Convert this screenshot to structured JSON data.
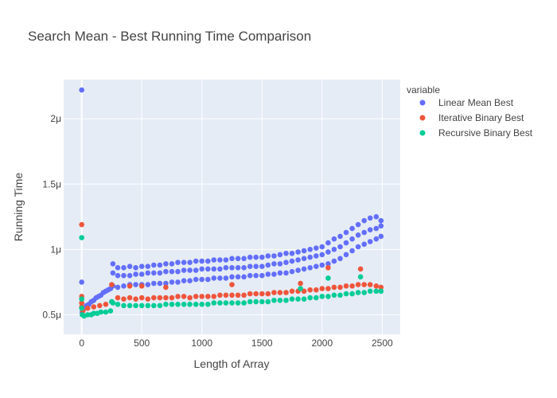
{
  "chart_data": {
    "type": "scatter",
    "title": "Search Mean - Best Running Time Comparison",
    "xlabel": "Length of Array",
    "ylabel": "Running Time",
    "xlim": [
      -150,
      2650
    ],
    "ylim": [
      0.35,
      2.3
    ],
    "x_ticks": [
      0,
      500,
      1000,
      1500,
      2000,
      2500
    ],
    "x_tick_labels": [
      "0",
      "500",
      "1000",
      "1500",
      "2000",
      "2500"
    ],
    "y_ticks": [
      0.5,
      1.0,
      1.5,
      2.0
    ],
    "y_tick_labels": [
      "0.5μ",
      "1μ",
      "1.5μ",
      "2μ"
    ],
    "grid": true,
    "legend_title": "variable",
    "legend_position": "top-right",
    "series": [
      {
        "name": "Linear Mean Best",
        "color": "#636efa",
        "points": [
          [
            0,
            2.22
          ],
          [
            0,
            0.75
          ],
          [
            5,
            0.52
          ],
          [
            20,
            0.55
          ],
          [
            40,
            0.57
          ],
          [
            60,
            0.58
          ],
          [
            80,
            0.6
          ],
          [
            100,
            0.61
          ],
          [
            120,
            0.63
          ],
          [
            140,
            0.64
          ],
          [
            160,
            0.65
          ],
          [
            180,
            0.67
          ],
          [
            200,
            0.68
          ],
          [
            220,
            0.69
          ],
          [
            240,
            0.7
          ],
          [
            260,
            0.89
          ],
          [
            260,
            0.82
          ],
          [
            260,
            0.72
          ],
          [
            300,
            0.86
          ],
          [
            300,
            0.8
          ],
          [
            300,
            0.71
          ],
          [
            350,
            0.86
          ],
          [
            350,
            0.8
          ],
          [
            350,
            0.72
          ],
          [
            400,
            0.87
          ],
          [
            400,
            0.8
          ],
          [
            400,
            0.73
          ],
          [
            450,
            0.86
          ],
          [
            450,
            0.81
          ],
          [
            450,
            0.73
          ],
          [
            500,
            0.87
          ],
          [
            500,
            0.81
          ],
          [
            500,
            0.73
          ],
          [
            550,
            0.87
          ],
          [
            550,
            0.82
          ],
          [
            550,
            0.73
          ],
          [
            600,
            0.88
          ],
          [
            600,
            0.82
          ],
          [
            600,
            0.74
          ],
          [
            650,
            0.88
          ],
          [
            650,
            0.82
          ],
          [
            650,
            0.74
          ],
          [
            700,
            0.89
          ],
          [
            700,
            0.83
          ],
          [
            700,
            0.74
          ],
          [
            750,
            0.89
          ],
          [
            750,
            0.83
          ],
          [
            750,
            0.75
          ],
          [
            800,
            0.9
          ],
          [
            800,
            0.83
          ],
          [
            800,
            0.75
          ],
          [
            850,
            0.9
          ],
          [
            850,
            0.84
          ],
          [
            850,
            0.76
          ],
          [
            900,
            0.9
          ],
          [
            900,
            0.84
          ],
          [
            900,
            0.76
          ],
          [
            950,
            0.91
          ],
          [
            950,
            0.84
          ],
          [
            950,
            0.77
          ],
          [
            1000,
            0.91
          ],
          [
            1000,
            0.85
          ],
          [
            1000,
            0.77
          ],
          [
            1050,
            0.91
          ],
          [
            1050,
            0.85
          ],
          [
            1050,
            0.77
          ],
          [
            1100,
            0.92
          ],
          [
            1100,
            0.85
          ],
          [
            1100,
            0.78
          ],
          [
            1150,
            0.92
          ],
          [
            1150,
            0.85
          ],
          [
            1150,
            0.78
          ],
          [
            1200,
            0.92
          ],
          [
            1200,
            0.86
          ],
          [
            1200,
            0.78
          ],
          [
            1250,
            0.93
          ],
          [
            1250,
            0.86
          ],
          [
            1250,
            0.79
          ],
          [
            1300,
            0.93
          ],
          [
            1300,
            0.86
          ],
          [
            1300,
            0.79
          ],
          [
            1350,
            0.93
          ],
          [
            1350,
            0.86
          ],
          [
            1350,
            0.79
          ],
          [
            1400,
            0.94
          ],
          [
            1400,
            0.87
          ],
          [
            1400,
            0.8
          ],
          [
            1450,
            0.94
          ],
          [
            1450,
            0.87
          ],
          [
            1450,
            0.8
          ],
          [
            1500,
            0.94
          ],
          [
            1500,
            0.87
          ],
          [
            1500,
            0.8
          ],
          [
            1550,
            0.95
          ],
          [
            1550,
            0.88
          ],
          [
            1550,
            0.81
          ],
          [
            1600,
            0.95
          ],
          [
            1600,
            0.89
          ],
          [
            1600,
            0.81
          ],
          [
            1650,
            0.96
          ],
          [
            1650,
            0.89
          ],
          [
            1650,
            0.82
          ],
          [
            1700,
            0.97
          ],
          [
            1700,
            0.9
          ],
          [
            1700,
            0.82
          ],
          [
            1750,
            0.97
          ],
          [
            1750,
            0.91
          ],
          [
            1750,
            0.83
          ],
          [
            1800,
            0.98
          ],
          [
            1800,
            0.92
          ],
          [
            1800,
            0.84
          ],
          [
            1850,
            0.99
          ],
          [
            1850,
            0.93
          ],
          [
            1850,
            0.85
          ],
          [
            1900,
            1.0
          ],
          [
            1900,
            0.94
          ],
          [
            1900,
            0.86
          ],
          [
            1950,
            1.01
          ],
          [
            1950,
            0.95
          ],
          [
            1950,
            0.87
          ],
          [
            2000,
            1.02
          ],
          [
            2000,
            0.96
          ],
          [
            2000,
            0.88
          ],
          [
            2050,
            1.05
          ],
          [
            2050,
            0.98
          ],
          [
            2050,
            0.89
          ],
          [
            2100,
            1.08
          ],
          [
            2100,
            1.0
          ],
          [
            2100,
            0.91
          ],
          [
            2150,
            1.1
          ],
          [
            2150,
            1.02
          ],
          [
            2150,
            0.93
          ],
          [
            2200,
            1.13
          ],
          [
            2200,
            1.05
          ],
          [
            2200,
            0.96
          ],
          [
            2250,
            1.16
          ],
          [
            2250,
            1.08
          ],
          [
            2250,
            0.99
          ],
          [
            2300,
            1.19
          ],
          [
            2300,
            1.11
          ],
          [
            2300,
            1.02
          ],
          [
            2350,
            1.22
          ],
          [
            2350,
            1.13
          ],
          [
            2350,
            1.04
          ],
          [
            2400,
            1.24
          ],
          [
            2400,
            1.15
          ],
          [
            2400,
            1.06
          ],
          [
            2450,
            1.25
          ],
          [
            2450,
            1.16
          ],
          [
            2450,
            1.08
          ],
          [
            2490,
            1.22
          ],
          [
            2490,
            1.18
          ],
          [
            2490,
            1.1
          ]
        ]
      },
      {
        "name": "Iterative Binary Best",
        "color": "#ef553b",
        "points": [
          [
            0,
            1.19
          ],
          [
            0,
            0.64
          ],
          [
            0,
            0.59
          ],
          [
            0,
            0.56
          ],
          [
            10,
            0.53
          ],
          [
            50,
            0.55
          ],
          [
            100,
            0.56
          ],
          [
            150,
            0.57
          ],
          [
            200,
            0.58
          ],
          [
            250,
            0.73
          ],
          [
            250,
            0.6
          ],
          [
            300,
            0.63
          ],
          [
            350,
            0.62
          ],
          [
            400,
            0.72
          ],
          [
            400,
            0.63
          ],
          [
            450,
            0.62
          ],
          [
            500,
            0.72
          ],
          [
            500,
            0.63
          ],
          [
            550,
            0.62
          ],
          [
            600,
            0.63
          ],
          [
            650,
            0.63
          ],
          [
            700,
            0.71
          ],
          [
            700,
            0.63
          ],
          [
            750,
            0.63
          ],
          [
            800,
            0.64
          ],
          [
            850,
            0.64
          ],
          [
            900,
            0.63
          ],
          [
            950,
            0.64
          ],
          [
            1000,
            0.64
          ],
          [
            1050,
            0.64
          ],
          [
            1100,
            0.64
          ],
          [
            1150,
            0.65
          ],
          [
            1200,
            0.65
          ],
          [
            1250,
            0.73
          ],
          [
            1250,
            0.65
          ],
          [
            1300,
            0.65
          ],
          [
            1350,
            0.65
          ],
          [
            1400,
            0.66
          ],
          [
            1450,
            0.66
          ],
          [
            1500,
            0.66
          ],
          [
            1550,
            0.66
          ],
          [
            1600,
            0.67
          ],
          [
            1650,
            0.67
          ],
          [
            1700,
            0.67
          ],
          [
            1750,
            0.68
          ],
          [
            1800,
            0.68
          ],
          [
            1820,
            0.74
          ],
          [
            1850,
            0.68
          ],
          [
            1900,
            0.69
          ],
          [
            1950,
            0.69
          ],
          [
            2000,
            0.7
          ],
          [
            2050,
            0.86
          ],
          [
            2050,
            0.7
          ],
          [
            2100,
            0.71
          ],
          [
            2150,
            0.71
          ],
          [
            2200,
            0.72
          ],
          [
            2250,
            0.72
          ],
          [
            2300,
            0.73
          ],
          [
            2320,
            0.85
          ],
          [
            2350,
            0.73
          ],
          [
            2400,
            0.73
          ],
          [
            2450,
            0.72
          ],
          [
            2490,
            0.71
          ]
        ]
      },
      {
        "name": "Recursive Binary Best",
        "color": "#00cc96",
        "points": [
          [
            0,
            1.09
          ],
          [
            0,
            0.62
          ],
          [
            0,
            0.55
          ],
          [
            5,
            0.5
          ],
          [
            20,
            0.49
          ],
          [
            50,
            0.5
          ],
          [
            80,
            0.5
          ],
          [
            100,
            0.51
          ],
          [
            130,
            0.51
          ],
          [
            160,
            0.52
          ],
          [
            200,
            0.52
          ],
          [
            240,
            0.53
          ],
          [
            250,
            0.6
          ],
          [
            260,
            0.59
          ],
          [
            300,
            0.58
          ],
          [
            350,
            0.57
          ],
          [
            400,
            0.57
          ],
          [
            450,
            0.57
          ],
          [
            500,
            0.57
          ],
          [
            550,
            0.57
          ],
          [
            600,
            0.57
          ],
          [
            650,
            0.57
          ],
          [
            700,
            0.58
          ],
          [
            750,
            0.58
          ],
          [
            800,
            0.58
          ],
          [
            850,
            0.58
          ],
          [
            900,
            0.58
          ],
          [
            950,
            0.58
          ],
          [
            1000,
            0.58
          ],
          [
            1050,
            0.58
          ],
          [
            1100,
            0.59
          ],
          [
            1150,
            0.59
          ],
          [
            1200,
            0.59
          ],
          [
            1250,
            0.59
          ],
          [
            1300,
            0.59
          ],
          [
            1350,
            0.59
          ],
          [
            1400,
            0.6
          ],
          [
            1450,
            0.6
          ],
          [
            1500,
            0.6
          ],
          [
            1550,
            0.6
          ],
          [
            1600,
            0.61
          ],
          [
            1650,
            0.61
          ],
          [
            1700,
            0.61
          ],
          [
            1750,
            0.62
          ],
          [
            1800,
            0.62
          ],
          [
            1820,
            0.7
          ],
          [
            1850,
            0.62
          ],
          [
            1900,
            0.63
          ],
          [
            1950,
            0.63
          ],
          [
            2000,
            0.64
          ],
          [
            2050,
            0.78
          ],
          [
            2050,
            0.64
          ],
          [
            2100,
            0.65
          ],
          [
            2150,
            0.65
          ],
          [
            2200,
            0.66
          ],
          [
            2250,
            0.66
          ],
          [
            2300,
            0.67
          ],
          [
            2320,
            0.79
          ],
          [
            2350,
            0.67
          ],
          [
            2400,
            0.68
          ],
          [
            2450,
            0.68
          ],
          [
            2490,
            0.68
          ]
        ]
      }
    ]
  }
}
